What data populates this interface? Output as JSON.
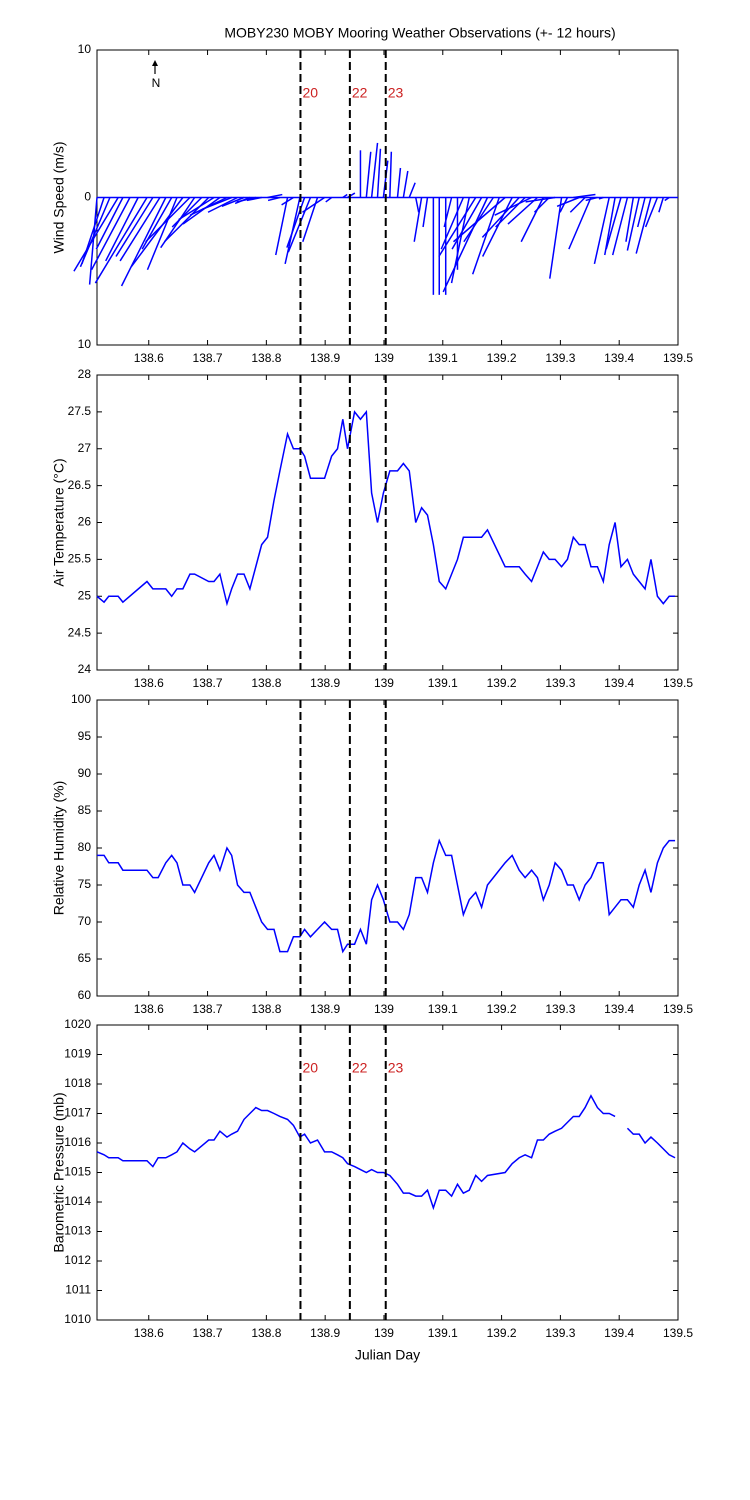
{
  "chart_data": [
    {
      "type": "stick",
      "title": "MOBY230 MOBY Mooring Weather Observations (+- 12 hours)",
      "ylabel": "Wind Speed (m/s)",
      "north_label": "N",
      "xlim": [
        138.512,
        139.5
      ],
      "xticks": [
        138.6,
        138.7,
        138.8,
        138.9,
        139,
        139.1,
        139.2,
        139.3,
        139.4,
        139.5
      ],
      "ylim": [
        -10,
        10
      ],
      "yticks": [
        {
          "value": -10,
          "label": "10"
        },
        0,
        10
      ],
      "vlines": [
        138.858,
        138.942,
        139.003
      ],
      "vline_labels": [
        "20",
        "22",
        "23"
      ],
      "vline_color": "#000000",
      "vline_label_color": "#cc2222",
      "series": [
        {
          "color": "#0000ff",
          "x": [
            138.512,
            138.524,
            138.534,
            138.548,
            138.556,
            138.568,
            138.582,
            138.597,
            138.607,
            138.619,
            138.629,
            138.639,
            138.648,
            138.658,
            138.67,
            138.678,
            138.69,
            138.702,
            138.711,
            138.721,
            138.733,
            138.741,
            138.751,
            138.762,
            138.772,
            138.782,
            138.792,
            138.802,
            138.823,
            138.836,
            138.846,
            138.857,
            138.865,
            138.875,
            138.887,
            138.899,
            138.911,
            138.93,
            138.938,
            138.96,
            138.97,
            138.979,
            138.989,
            138.999,
            139.01,
            139.023,
            139.033,
            139.043,
            139.054,
            139.064,
            139.074,
            139.084,
            139.094,
            139.105,
            139.115,
            139.125,
            139.135,
            139.145,
            139.156,
            139.166,
            139.176,
            139.186,
            139.196,
            139.206,
            139.218,
            139.23,
            139.24,
            139.251,
            139.261,
            139.271,
            139.281,
            139.291,
            139.302,
            139.312,
            139.322,
            139.332,
            139.342,
            139.352,
            139.363,
            139.373,
            139.383,
            139.393,
            139.403,
            139.414,
            139.424,
            139.434,
            139.444,
            139.454,
            139.465,
            139.475,
            139.485
          ],
          "u": [
            -0.5,
            -1.5,
            -2.0,
            -3.0,
            -1.8,
            -2.6,
            -2.2,
            -3.5,
            -2.5,
            -2.7,
            -3.0,
            -2.0,
            -2.0,
            -3.5,
            -3.0,
            -2.3,
            -2.0,
            -3.0,
            -2.4,
            -2.5,
            -2.5,
            -2.0,
            -2.0,
            -1.5,
            -1.0,
            -1.3,
            -1.0,
            1.0,
            -0.8,
            -0.8,
            -0.8,
            -1.0,
            -1.2,
            -1.5,
            -1.0,
            -1.5,
            -0.4,
            0.3,
            0.5,
            0.0,
            0.3,
            0.4,
            0.2,
            0.3,
            0.1,
            0.2,
            0.3,
            0.4,
            0.2,
            -0.5,
            -0.3,
            0.0,
            0.0,
            0.0,
            -0.5,
            0.0,
            -1.5,
            -1.2,
            -2.5,
            -2.0,
            -3.0,
            -2.0,
            -1.8,
            -3.5,
            -2.0,
            -2.5,
            -2.0,
            -2.5,
            -2.0,
            -1.5,
            -1.0,
            -2.0,
            -0.8,
            -0.5,
            1.5,
            -1.5,
            -1.0,
            -1.5,
            -0.8,
            -0.3,
            -1.0,
            -0.7,
            -1.0,
            -1.0,
            -0.5,
            -0.8,
            -0.5,
            -1.0,
            -0.8,
            -0.3,
            -0.3
          ],
          "v": [
            -5.9,
            -4.5,
            -4.7,
            -5.0,
            -3.5,
            -4.9,
            -4.3,
            -5.8,
            -4.0,
            -4.3,
            -6.0,
            -3.5,
            -4.9,
            -4.7,
            -3.0,
            -3.4,
            -2.0,
            -3.0,
            -1.5,
            -1.8,
            -1.2,
            -0.8,
            -1.0,
            -0.6,
            -0.4,
            -0.3,
            -0.2,
            0.2,
            -0.2,
            -3.9,
            -0.5,
            -4.5,
            -3.4,
            -3.7,
            -3.0,
            -1.0,
            -0.3,
            0.2,
            0.3,
            3.2,
            3.1,
            3.7,
            3.3,
            2.5,
            3.1,
            2.0,
            1.8,
            1.0,
            -1.0,
            -3.0,
            -2.0,
            -6.6,
            -6.6,
            -6.6,
            -2.0,
            -4.9,
            -3.5,
            -5.8,
            -4.0,
            -3.5,
            -6.4,
            -3.0,
            -5.2,
            -3.0,
            -4.0,
            -2.7,
            -2.0,
            -1.2,
            -1.8,
            -3.0,
            -1.0,
            -0.3,
            -5.5,
            -1.0,
            0.2,
            -0.6,
            -1.0,
            -3.5,
            -0.2,
            -0.1,
            -4.5,
            -3.9,
            -3.5,
            -3.9,
            -3.0,
            -3.6,
            -2.0,
            -3.8,
            -2.0,
            -1.0,
            -0.2
          ]
        }
      ]
    },
    {
      "type": "line",
      "ylabel": "Air Temperature (°C)",
      "xlim": [
        138.512,
        139.5
      ],
      "xticks": [
        138.6,
        138.7,
        138.8,
        138.9,
        139,
        139.1,
        139.2,
        139.3,
        139.4,
        139.5
      ],
      "ylim": [
        24,
        28
      ],
      "yticks": [
        24,
        24.5,
        25,
        25.5,
        26,
        26.5,
        27,
        27.5,
        28
      ],
      "vlines": [
        138.858,
        138.942,
        139.003
      ],
      "vline_color": "#000000",
      "x": [
        138.512,
        138.524,
        138.532,
        138.548,
        138.556,
        138.597,
        138.607,
        138.616,
        138.629,
        138.639,
        138.648,
        138.658,
        138.67,
        138.678,
        138.702,
        138.711,
        138.721,
        138.733,
        138.741,
        138.751,
        138.762,
        138.772,
        138.782,
        138.792,
        138.802,
        138.813,
        138.823,
        138.836,
        138.846,
        138.857,
        138.865,
        138.875,
        138.887,
        138.899,
        138.911,
        138.921,
        138.93,
        138.938,
        138.95,
        138.96,
        138.97,
        138.979,
        138.989,
        138.999,
        139.01,
        139.023,
        139.033,
        139.043,
        139.054,
        139.064,
        139.074,
        139.084,
        139.094,
        139.105,
        139.115,
        139.125,
        139.135,
        139.145,
        139.156,
        139.166,
        139.176,
        139.206,
        139.218,
        139.23,
        139.24,
        139.251,
        139.261,
        139.271,
        139.281,
        139.291,
        139.302,
        139.312,
        139.322,
        139.332,
        139.342,
        139.352,
        139.363,
        139.373,
        139.383,
        139.393,
        139.403,
        139.414,
        139.424,
        139.434,
        139.444,
        139.454,
        139.465,
        139.475,
        139.485,
        139.495
      ],
      "series": [
        {
          "color": "#0000ff",
          "values": [
            25.0,
            24.92,
            25.0,
            25.0,
            24.92,
            25.2,
            25.1,
            25.1,
            25.1,
            25.0,
            25.1,
            25.1,
            25.3,
            25.3,
            25.2,
            25.2,
            25.3,
            24.9,
            25.1,
            25.3,
            25.3,
            25.1,
            25.4,
            25.7,
            25.8,
            26.3,
            26.7,
            27.2,
            27.0,
            27.0,
            26.9,
            26.6,
            26.6,
            26.6,
            26.9,
            27.0,
            27.4,
            27.0,
            27.5,
            27.4,
            27.5,
            26.4,
            26.0,
            26.4,
            26.7,
            26.7,
            26.8,
            26.7,
            26.0,
            26.2,
            26.1,
            25.7,
            25.2,
            25.1,
            25.3,
            25.5,
            25.8,
            25.8,
            25.8,
            25.8,
            25.9,
            25.4,
            25.4,
            25.4,
            25.3,
            25.2,
            25.4,
            25.6,
            25.5,
            25.5,
            25.4,
            25.5,
            25.8,
            25.7,
            25.7,
            25.4,
            25.4,
            25.2,
            25.7,
            26.0,
            25.4,
            25.5,
            25.3,
            25.2,
            25.1,
            25.5,
            25.0,
            24.9,
            25.0,
            25.0
          ]
        }
      ]
    },
    {
      "type": "line",
      "ylabel": "Relative Humidity (%)",
      "xlim": [
        138.512,
        139.5
      ],
      "xticks": [
        138.6,
        138.7,
        138.8,
        138.9,
        139,
        139.1,
        139.2,
        139.3,
        139.4,
        139.5
      ],
      "ylim": [
        60,
        100
      ],
      "yticks": [
        60,
        65,
        70,
        75,
        80,
        85,
        90,
        95,
        100
      ],
      "vlines": [
        138.858,
        138.942,
        139.003
      ],
      "vline_color": "#000000",
      "x": [
        138.512,
        138.524,
        138.532,
        138.548,
        138.556,
        138.597,
        138.607,
        138.616,
        138.629,
        138.639,
        138.648,
        138.658,
        138.67,
        138.678,
        138.702,
        138.711,
        138.721,
        138.733,
        138.741,
        138.751,
        138.762,
        138.772,
        138.782,
        138.792,
        138.802,
        138.813,
        138.823,
        138.836,
        138.846,
        138.857,
        138.865,
        138.875,
        138.887,
        138.899,
        138.911,
        138.921,
        138.93,
        138.938,
        138.95,
        138.96,
        138.97,
        138.979,
        138.989,
        138.999,
        139.01,
        139.023,
        139.033,
        139.043,
        139.054,
        139.064,
        139.074,
        139.084,
        139.094,
        139.105,
        139.115,
        139.125,
        139.135,
        139.145,
        139.156,
        139.166,
        139.176,
        139.206,
        139.218,
        139.23,
        139.24,
        139.251,
        139.261,
        139.271,
        139.281,
        139.291,
        139.302,
        139.312,
        139.322,
        139.332,
        139.342,
        139.352,
        139.363,
        139.373,
        139.383,
        139.393,
        139.403,
        139.414,
        139.424,
        139.434,
        139.444,
        139.454,
        139.465,
        139.475,
        139.485,
        139.495
      ],
      "series": [
        {
          "color": "#0000ff",
          "values": [
            79,
            79,
            78,
            78,
            77,
            77,
            76,
            76,
            78,
            79,
            78,
            75,
            75,
            74,
            78,
            79,
            77,
            80,
            79,
            75,
            74,
            74,
            72,
            70,
            69,
            69,
            66,
            66,
            68,
            68,
            69,
            68,
            69,
            70,
            69,
            69,
            66,
            67,
            67,
            69,
            67,
            73,
            75,
            73,
            70,
            70,
            69,
            71,
            76,
            76,
            74,
            78,
            81,
            79,
            79,
            75,
            71,
            73,
            74,
            72,
            75,
            78,
            79,
            77,
            76,
            77,
            76,
            73,
            75,
            78,
            77,
            75,
            75,
            73,
            75,
            76,
            78,
            78,
            71,
            72,
            73,
            73,
            72,
            75,
            77,
            74,
            78,
            80,
            81,
            81
          ]
        }
      ]
    },
    {
      "type": "line",
      "ylabel": "Barometric Pressure (mb)",
      "xlabel": "Julian Day",
      "xlim": [
        138.512,
        139.5
      ],
      "xticks": [
        138.6,
        138.7,
        138.8,
        138.9,
        139,
        139.1,
        139.2,
        139.3,
        139.4,
        139.5
      ],
      "ylim": [
        1010,
        1020
      ],
      "yticks": [
        1010,
        1011,
        1012,
        1013,
        1014,
        1015,
        1016,
        1017,
        1018,
        1019,
        1020
      ],
      "vlines": [
        138.858,
        138.942,
        139.003
      ],
      "vline_labels": [
        "20",
        "22",
        "23"
      ],
      "vline_color": "#000000",
      "vline_label_color": "#cc2222",
      "x": [
        138.512,
        138.524,
        138.532,
        138.548,
        138.556,
        138.597,
        138.607,
        138.616,
        138.629,
        138.639,
        138.648,
        138.658,
        138.67,
        138.678,
        138.702,
        138.711,
        138.721,
        138.733,
        138.741,
        138.751,
        138.762,
        138.772,
        138.782,
        138.792,
        138.802,
        138.813,
        138.823,
        138.836,
        138.846,
        138.857,
        138.865,
        138.875,
        138.887,
        138.899,
        138.911,
        138.921,
        138.93,
        138.938,
        138.95,
        138.96,
        138.97,
        138.979,
        138.989,
        138.999,
        139.01,
        139.023,
        139.033,
        139.043,
        139.054,
        139.064,
        139.074,
        139.084,
        139.094,
        139.105,
        139.115,
        139.125,
        139.135,
        139.145,
        139.156,
        139.166,
        139.176,
        139.206,
        139.218,
        139.23,
        139.24,
        139.251,
        139.261,
        139.271,
        139.281,
        139.291,
        139.302,
        139.312,
        139.322,
        139.332,
        139.342,
        139.352,
        139.363,
        139.373,
        139.383,
        139.393,
        139.403,
        139.414,
        139.424,
        139.434,
        139.444,
        139.454,
        139.465,
        139.475,
        139.485,
        139.495
      ],
      "series": [
        {
          "color": "#0000ff",
          "values": [
            1015.7,
            1015.6,
            1015.5,
            1015.5,
            1015.4,
            1015.4,
            1015.2,
            1015.5,
            1015.5,
            1015.6,
            1015.7,
            1016.0,
            1015.8,
            1015.7,
            1016.1,
            1016.1,
            1016.4,
            1016.2,
            1016.3,
            1016.4,
            1016.8,
            1017.0,
            1017.2,
            1017.1,
            1017.1,
            1017.0,
            1016.9,
            1016.8,
            1016.6,
            1016.2,
            1016.3,
            1016.0,
            1016.1,
            1015.7,
            1015.7,
            1015.6,
            1015.5,
            1015.3,
            1015.2,
            1015.1,
            1015.0,
            1015.1,
            1015.0,
            1015.0,
            1014.9,
            1014.6,
            1014.3,
            1014.3,
            1014.2,
            1014.2,
            1014.4,
            1013.8,
            1014.4,
            1014.4,
            1014.2,
            1014.6,
            1014.3,
            1014.4,
            1014.9,
            1014.7,
            1014.9,
            1015.0,
            1015.3,
            1015.5,
            1015.6,
            1015.5,
            1016.1,
            1016.1,
            1016.3,
            1016.4,
            1016.5,
            1016.7,
            1016.9,
            1016.9,
            1017.2,
            1017.6,
            1017.2,
            1017.0,
            1017.0,
            1016.9,
            null,
            1016.5,
            1016.3,
            1016.3,
            1016.0,
            1016.2,
            1016.0,
            1015.8,
            1015.6,
            1015.5
          ]
        }
      ]
    }
  ]
}
